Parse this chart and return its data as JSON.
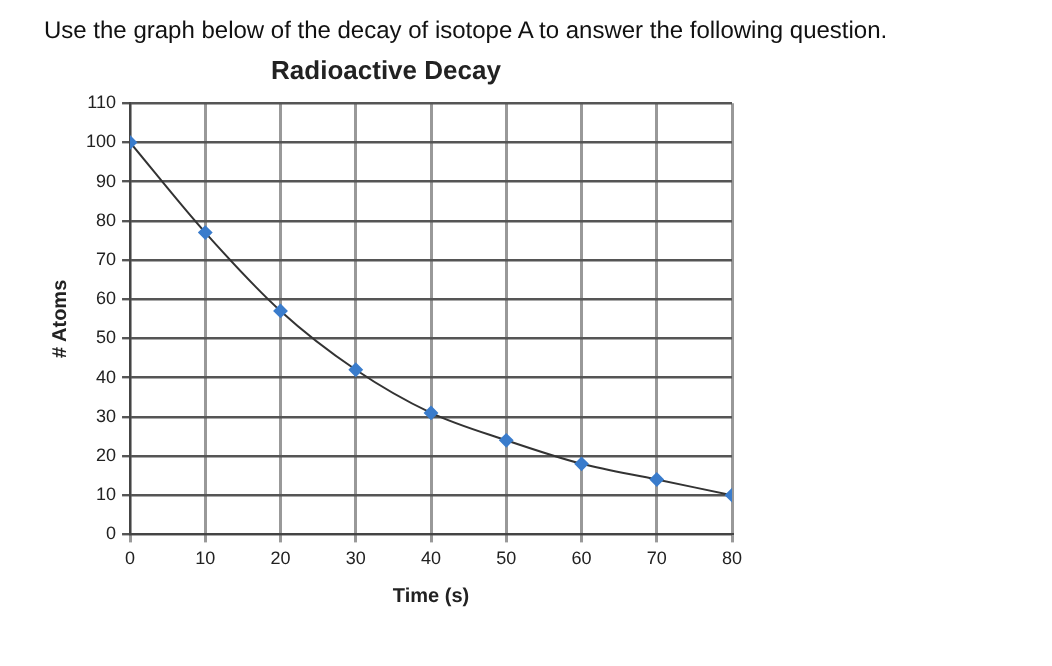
{
  "chart_data": {
    "type": "line",
    "title": "Radioactive Decay",
    "xlabel": "Time (s)",
    "ylabel": "# Atoms",
    "annotations": [
      "Use the graph below of the decay of isotope A to answer the following question."
    ],
    "x": [
      0,
      10,
      20,
      30,
      40,
      50,
      60,
      70,
      80
    ],
    "series": [
      {
        "color": "#3a7ccc",
        "values": [
          100,
          77,
          57,
          42,
          31,
          24,
          18,
          14,
          10
        ]
      }
    ],
    "xlim": [
      0,
      80
    ],
    "xticks": [
      0,
      10,
      20,
      30,
      40,
      50,
      60,
      70,
      80
    ],
    "ylim": [
      0,
      110
    ],
    "yticks": [
      0,
      10,
      20,
      30,
      40,
      50,
      60,
      70,
      80,
      90,
      100,
      110
    ],
    "grid": true,
    "legend": false,
    "marker": "diamond",
    "line_style": "solid"
  }
}
